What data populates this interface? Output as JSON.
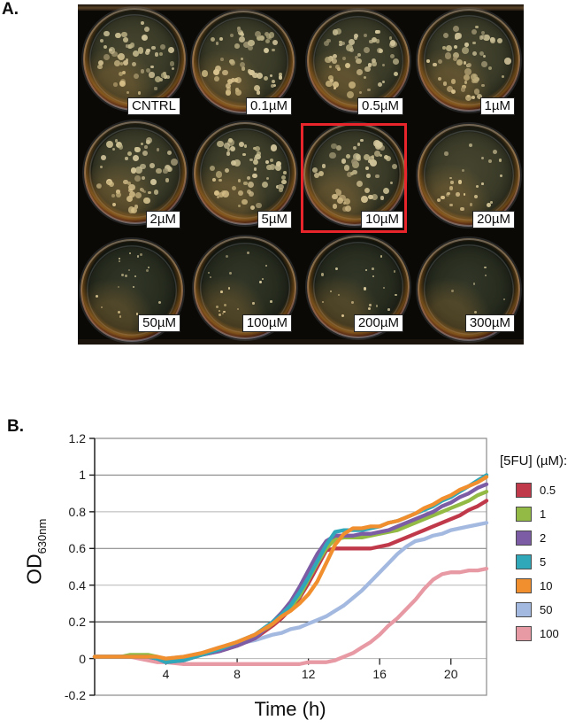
{
  "panel_a": {
    "label": "A.",
    "wells": [
      {
        "label": "CNTRL",
        "density": "dense"
      },
      {
        "label": "0.1µM",
        "density": "dense"
      },
      {
        "label": "0.5µM",
        "density": "dense"
      },
      {
        "label": "1µM",
        "density": "dense"
      },
      {
        "label": "2µM",
        "density": "dense"
      },
      {
        "label": "5µM",
        "density": "dense"
      },
      {
        "label": "10µM",
        "density": "dense",
        "highlighted": true
      },
      {
        "label": "20µM",
        "density": "medium"
      },
      {
        "label": "50µM",
        "density": "sparse"
      },
      {
        "label": "100µM",
        "density": "sparse"
      },
      {
        "label": "200µM",
        "density": "sparse"
      },
      {
        "label": "300µM",
        "density": "few"
      }
    ],
    "highlighted_well": "10µM",
    "highlight_color": "#e8252a"
  },
  "panel_b": {
    "label": "B."
  },
  "chart_data": {
    "type": "line",
    "title": "",
    "xlabel": "Time (h)",
    "ylabel": "OD",
    "ylabel_sub": "630nm",
    "legend_title": "[5FU] (µM):",
    "legend_position": "right",
    "grid": "horizontal",
    "xlim": [
      0,
      22
    ],
    "ylim": [
      -0.2,
      1.2
    ],
    "xticks": [
      4,
      8,
      12,
      16,
      20
    ],
    "yticks": [
      -0.2,
      0,
      0.2,
      0.4,
      0.6,
      0.8,
      1,
      1.2
    ],
    "x": [
      0,
      0.5,
      1,
      1.5,
      2,
      2.5,
      3,
      3.5,
      4,
      5,
      6,
      7,
      8,
      9,
      10,
      10.5,
      11,
      11.5,
      12,
      12.5,
      13,
      13.5,
      14,
      14.5,
      15,
      15.5,
      16,
      16.5,
      17,
      17.5,
      18,
      18.5,
      19,
      19.5,
      20,
      20.5,
      21,
      21.5,
      22
    ],
    "series": [
      {
        "name": "0.5",
        "color": "#c0394a",
        "values": [
          0.01,
          0.01,
          0.01,
          0.01,
          0.01,
          0.01,
          0.01,
          0.0,
          -0.01,
          0.0,
          0.02,
          0.04,
          0.07,
          0.11,
          0.18,
          0.22,
          0.27,
          0.33,
          0.41,
          0.5,
          0.59,
          0.6,
          0.6,
          0.6,
          0.6,
          0.6,
          0.61,
          0.62,
          0.64,
          0.66,
          0.68,
          0.7,
          0.72,
          0.74,
          0.76,
          0.78,
          0.81,
          0.83,
          0.86
        ]
      },
      {
        "name": "1",
        "color": "#92ba44",
        "values": [
          0.01,
          0.01,
          0.01,
          0.01,
          0.02,
          0.02,
          0.02,
          0.01,
          -0.01,
          0.0,
          0.02,
          0.05,
          0.08,
          0.12,
          0.19,
          0.23,
          0.28,
          0.34,
          0.43,
          0.52,
          0.6,
          0.65,
          0.66,
          0.66,
          0.66,
          0.67,
          0.68,
          0.69,
          0.7,
          0.72,
          0.74,
          0.76,
          0.78,
          0.8,
          0.82,
          0.84,
          0.86,
          0.89,
          0.91
        ]
      },
      {
        "name": "2",
        "color": "#7b5ca5",
        "values": [
          0.01,
          0.01,
          0.01,
          0.01,
          0.01,
          0.01,
          0.01,
          0.0,
          -0.02,
          -0.01,
          0.02,
          0.04,
          0.07,
          0.11,
          0.2,
          0.25,
          0.31,
          0.39,
          0.48,
          0.57,
          0.64,
          0.67,
          0.67,
          0.67,
          0.68,
          0.68,
          0.69,
          0.7,
          0.72,
          0.74,
          0.76,
          0.78,
          0.8,
          0.83,
          0.85,
          0.88,
          0.9,
          0.93,
          0.95
        ]
      },
      {
        "name": "5",
        "color": "#31a8ba",
        "values": [
          0.01,
          0.01,
          0.01,
          0.01,
          0.01,
          0.01,
          0.01,
          0.0,
          -0.02,
          -0.01,
          0.02,
          0.05,
          0.09,
          0.13,
          0.2,
          0.24,
          0.29,
          0.36,
          0.44,
          0.53,
          0.62,
          0.69,
          0.7,
          0.7,
          0.7,
          0.71,
          0.72,
          0.74,
          0.75,
          0.77,
          0.79,
          0.81,
          0.83,
          0.86,
          0.88,
          0.91,
          0.94,
          0.97,
          1.0
        ]
      },
      {
        "name": "10",
        "color": "#f18f2e",
        "values": [
          0.01,
          0.01,
          0.01,
          0.01,
          0.01,
          0.01,
          0.01,
          0.01,
          0.0,
          0.01,
          0.03,
          0.06,
          0.09,
          0.13,
          0.19,
          0.23,
          0.26,
          0.3,
          0.35,
          0.42,
          0.52,
          0.62,
          0.68,
          0.71,
          0.71,
          0.72,
          0.72,
          0.74,
          0.75,
          0.77,
          0.79,
          0.82,
          0.84,
          0.87,
          0.89,
          0.92,
          0.94,
          0.96,
          0.99
        ]
      },
      {
        "name": "50",
        "color": "#a4b9e0",
        "values": [
          0.01,
          0.01,
          0.01,
          0.01,
          0.01,
          0.01,
          0.01,
          0.0,
          0.0,
          0.01,
          0.03,
          0.06,
          0.08,
          0.1,
          0.13,
          0.14,
          0.16,
          0.17,
          0.19,
          0.21,
          0.23,
          0.26,
          0.29,
          0.33,
          0.37,
          0.42,
          0.47,
          0.52,
          0.57,
          0.61,
          0.64,
          0.65,
          0.67,
          0.68,
          0.7,
          0.71,
          0.72,
          0.73,
          0.74
        ]
      },
      {
        "name": "100",
        "color": "#e799a4",
        "values": [
          0.01,
          0.01,
          0.01,
          0.01,
          0.01,
          0.0,
          -0.01,
          -0.02,
          -0.02,
          -0.03,
          -0.03,
          -0.03,
          -0.03,
          -0.03,
          -0.03,
          -0.03,
          -0.03,
          -0.03,
          -0.02,
          -0.02,
          -0.02,
          -0.01,
          0.01,
          0.03,
          0.06,
          0.09,
          0.13,
          0.18,
          0.22,
          0.27,
          0.32,
          0.38,
          0.43,
          0.46,
          0.47,
          0.47,
          0.48,
          0.48,
          0.49
        ]
      }
    ]
  }
}
